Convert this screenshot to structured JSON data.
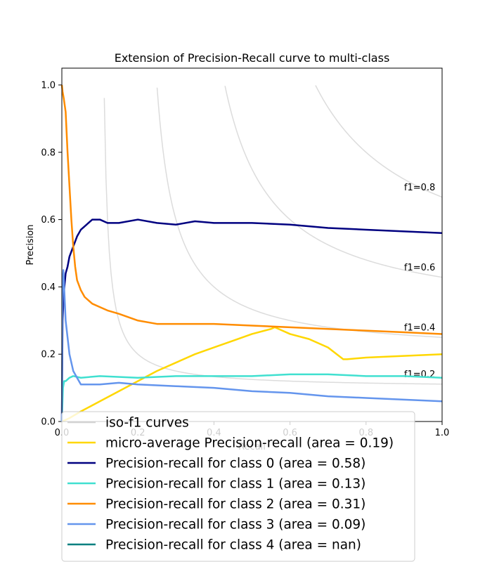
{
  "chart_data": {
    "type": "line",
    "title": "Extension of Precision-Recall curve to multi-class",
    "xlabel": "Recall",
    "ylabel": "Precision",
    "xlim": [
      0.0,
      1.0
    ],
    "ylim": [
      0.0,
      1.05
    ],
    "x_ticks": [
      "0.0",
      "0.2",
      "0.4",
      "0.6",
      "0.8",
      "1.0"
    ],
    "y_ticks": [
      "0.0",
      "0.2",
      "0.4",
      "0.6",
      "0.8",
      "1.0"
    ],
    "grid": false,
    "legend_position": "lower-left",
    "iso_f1": {
      "color": "#d3d3d3",
      "values": [
        0.2,
        0.4,
        0.6,
        0.8
      ],
      "labels": [
        "f1=0.2",
        "f1=0.4",
        "f1=0.6",
        "f1=0.8"
      ]
    },
    "series": [
      {
        "name": "micro-average Precision-recall (area = 0.19)",
        "color": "#ffd700",
        "x": [
          0.0,
          0.02,
          0.05,
          0.1,
          0.15,
          0.2,
          0.25,
          0.3,
          0.35,
          0.4,
          0.45,
          0.5,
          0.55,
          0.56,
          0.58,
          0.6,
          0.65,
          0.7,
          0.74,
          0.75,
          0.8,
          0.9,
          1.0
        ],
        "y": [
          0.0,
          0.01,
          0.03,
          0.06,
          0.09,
          0.12,
          0.15,
          0.175,
          0.2,
          0.22,
          0.24,
          0.26,
          0.275,
          0.28,
          0.27,
          0.26,
          0.245,
          0.22,
          0.185,
          0.185,
          0.19,
          0.195,
          0.2
        ]
      },
      {
        "name": "Precision-recall for class 0 (area = 0.58)",
        "color": "#000080",
        "x": [
          0.0,
          0.002,
          0.005,
          0.01,
          0.015,
          0.02,
          0.03,
          0.04,
          0.05,
          0.06,
          0.08,
          0.1,
          0.12,
          0.15,
          0.2,
          0.25,
          0.3,
          0.35,
          0.4,
          0.5,
          0.6,
          0.7,
          0.8,
          0.9,
          1.0
        ],
        "y": [
          0.0,
          0.3,
          0.38,
          0.44,
          0.46,
          0.49,
          0.52,
          0.55,
          0.57,
          0.58,
          0.6,
          0.6,
          0.59,
          0.59,
          0.6,
          0.59,
          0.585,
          0.595,
          0.59,
          0.59,
          0.585,
          0.575,
          0.57,
          0.565,
          0.56
        ]
      },
      {
        "name": "Precision-recall for class 1 (area = 0.13)",
        "color": "#40e0d0",
        "x": [
          0.0,
          0.003,
          0.006,
          0.01,
          0.02,
          0.03,
          0.05,
          0.1,
          0.2,
          0.3,
          0.4,
          0.5,
          0.6,
          0.7,
          0.8,
          0.9,
          1.0
        ],
        "y": [
          0.0,
          0.1,
          0.12,
          0.12,
          0.13,
          0.135,
          0.13,
          0.135,
          0.13,
          0.135,
          0.135,
          0.135,
          0.14,
          0.14,
          0.135,
          0.135,
          0.13
        ]
      },
      {
        "name": "Precision-recall for class 2 (area = 0.31)",
        "color": "#ff8c00",
        "x": [
          0.0,
          0.002,
          0.005,
          0.01,
          0.015,
          0.02,
          0.025,
          0.03,
          0.035,
          0.04,
          0.05,
          0.06,
          0.07,
          0.08,
          0.1,
          0.12,
          0.15,
          0.2,
          0.25,
          0.3,
          0.4,
          0.5,
          0.6,
          0.7,
          0.8,
          0.9,
          1.0
        ],
        "y": [
          1.0,
          0.98,
          0.96,
          0.92,
          0.8,
          0.7,
          0.6,
          0.52,
          0.46,
          0.42,
          0.39,
          0.37,
          0.36,
          0.35,
          0.34,
          0.33,
          0.32,
          0.3,
          0.29,
          0.29,
          0.29,
          0.285,
          0.28,
          0.275,
          0.27,
          0.265,
          0.26
        ]
      },
      {
        "name": "Precision-recall for class 3 (area = 0.09)",
        "color": "#6495ed",
        "x": [
          0.0,
          0.002,
          0.004,
          0.006,
          0.008,
          0.01,
          0.015,
          0.02,
          0.03,
          0.04,
          0.05,
          0.07,
          0.1,
          0.15,
          0.2,
          0.3,
          0.4,
          0.5,
          0.6,
          0.7,
          0.8,
          0.9,
          1.0
        ],
        "y": [
          0.0,
          0.42,
          0.45,
          0.4,
          0.35,
          0.3,
          0.25,
          0.2,
          0.15,
          0.13,
          0.11,
          0.11,
          0.11,
          0.115,
          0.11,
          0.105,
          0.1,
          0.09,
          0.085,
          0.075,
          0.07,
          0.065,
          0.06
        ]
      },
      {
        "name": "Precision-recall for class 4 (area = nan)",
        "color": "#008080",
        "x": [
          0.0,
          0.0
        ],
        "y": [
          0.0,
          0.0
        ]
      },
      {
        "name": "iso-f1 curves",
        "color": "#d3d3d3",
        "x": [
          0.0,
          0.0
        ],
        "y": [
          0.0,
          0.0
        ]
      }
    ],
    "legend_order": [
      6,
      0,
      1,
      2,
      3,
      4,
      5
    ]
  }
}
